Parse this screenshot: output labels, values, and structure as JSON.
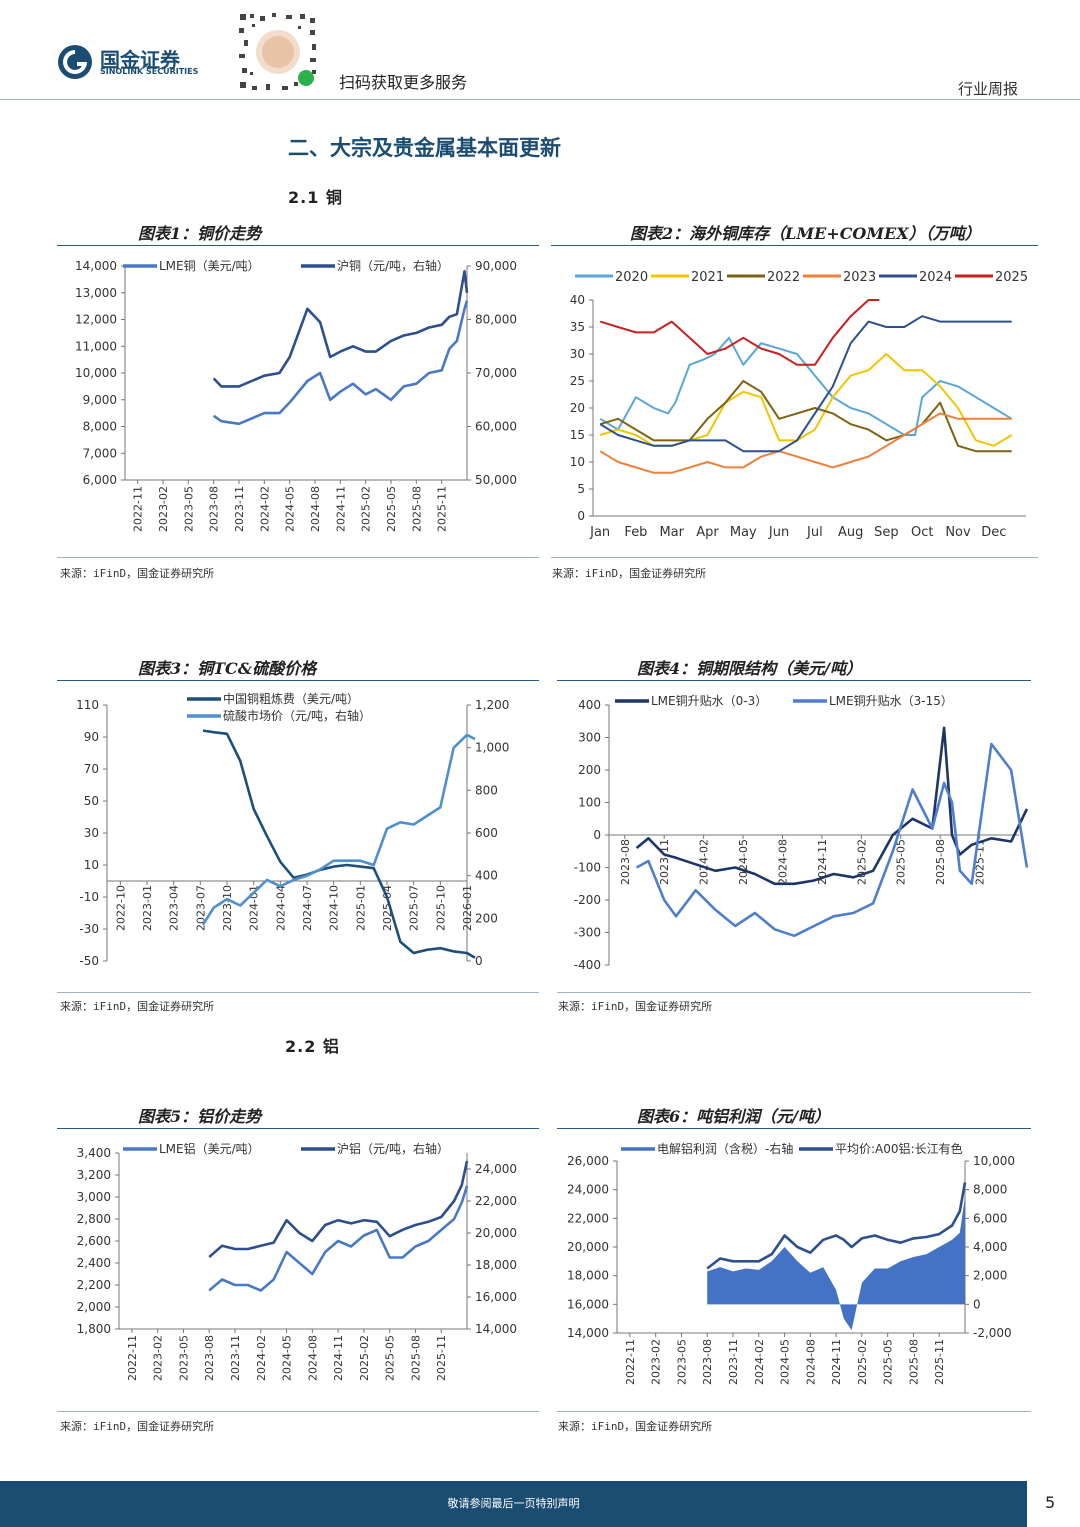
{
  "header": {
    "logo_cn": "国金证券",
    "logo_en": "SINOLINK SECURITIES",
    "qr_caption": "扫码获取更多服务",
    "report_type": "行业周报"
  },
  "section_title": "二、大宗及贵金属基本面更新",
  "subsections": {
    "copper": "2.1 铜",
    "aluminum": "2.2 铝"
  },
  "source_text": "来源：iFinD，国金证券研究所",
  "footer": {
    "disclaimer": "敬请参阅最后一页特别声明",
    "page": "5"
  },
  "chart_data": [
    {
      "id": "fig1",
      "type": "line",
      "title": "图表1：铜价走势",
      "x_ticks": [
        "2022-11",
        "2023-02",
        "2023-05",
        "2023-08",
        "2023-11",
        "2024-02",
        "2024-05",
        "2024-08",
        "2024-11",
        "2025-02",
        "2025-05",
        "2025-08",
        "2025-11"
      ],
      "ylim_left": [
        6000,
        14000
      ],
      "yticks_left": [
        "6,000",
        "7,000",
        "8,000",
        "9,000",
        "10,000",
        "11,000",
        "12,000",
        "13,000",
        "14,000"
      ],
      "ylim_right": [
        50000,
        90000
      ],
      "yticks_right": [
        "50,000",
        "60,000",
        "70,000",
        "80,000",
        "90,000"
      ],
      "series": [
        {
          "name": "LME铜（美元/吨）",
          "axis": "left",
          "color": "#4b78c6",
          "x": [
            3.0,
            3.3,
            4.0,
            5.0,
            5.6,
            6.0,
            6.7,
            7.2,
            7.6,
            8.0,
            8.5,
            9.0,
            9.4,
            10.0,
            10.5,
            11.0,
            11.5,
            12.0,
            12.3,
            12.6,
            12.9,
            13.0
          ],
          "y": [
            8400,
            8200,
            8100,
            8500,
            8500,
            8900,
            9700,
            10000,
            9000,
            9300,
            9600,
            9200,
            9400,
            9000,
            9500,
            9600,
            10000,
            10100,
            10900,
            11200,
            12400,
            12700
          ]
        },
        {
          "name": "沪铜（元/吨，右轴）",
          "axis": "right",
          "color": "#2e4f8f",
          "x": [
            3.0,
            3.3,
            4.0,
            5.0,
            5.6,
            6.0,
            6.7,
            7.2,
            7.6,
            8.0,
            8.5,
            9.0,
            9.4,
            10.0,
            10.5,
            11.0,
            11.5,
            12.0,
            12.3,
            12.6,
            12.9,
            13.0
          ],
          "y": [
            69000,
            67500,
            67500,
            69500,
            70000,
            73000,
            82000,
            79500,
            73000,
            74000,
            75000,
            74000,
            74000,
            76000,
            77000,
            77500,
            78500,
            79000,
            80500,
            81000,
            89000,
            85000
          ]
        }
      ]
    },
    {
      "id": "fig2",
      "type": "line",
      "title": "图表2：海外铜库存（LME+COMEX）（万吨）",
      "categories": [
        "Jan",
        "Feb",
        "Mar",
        "Apr",
        "May",
        "Jun",
        "Jul",
        "Aug",
        "Sep",
        "Oct",
        "Nov",
        "Dec"
      ],
      "ylim": [
        0,
        40
      ],
      "yticks": [
        "0",
        "5",
        "10",
        "15",
        "20",
        "25",
        "30",
        "35",
        "40"
      ],
      "series": [
        {
          "name": "2020",
          "color": "#5aa6d9",
          "x": [
            0,
            0.5,
            1,
            1.5,
            1.9,
            2.1,
            2.5,
            2.9,
            3.2,
            3.6,
            4.0,
            4.5,
            5.0,
            5.5,
            6.0,
            6.5,
            7.0,
            7.5,
            8.0,
            8.5,
            8.8,
            9.0,
            9.5,
            10.0,
            10.5,
            11.0,
            11.5
          ],
          "y": [
            18,
            16,
            22,
            20,
            19,
            21,
            28,
            29,
            30,
            33,
            28,
            32,
            31,
            30,
            26,
            22,
            20,
            19,
            17,
            15,
            15,
            22,
            25,
            24,
            22,
            20,
            18
          ]
        },
        {
          "name": "2021",
          "color": "#f2c500",
          "x": [
            0,
            0.5,
            1,
            1.5,
            2,
            2.5,
            3,
            3.5,
            4,
            4.5,
            5,
            5.5,
            6,
            6.5,
            7,
            7.5,
            8,
            8.5,
            9,
            9.5,
            10,
            10.5,
            11,
            11.5
          ],
          "y": [
            15,
            16,
            15,
            13,
            13,
            14,
            15,
            21,
            23,
            22,
            14,
            14,
            16,
            22,
            26,
            27,
            30,
            27,
            27,
            24,
            20,
            14,
            13,
            15
          ]
        },
        {
          "name": "2022",
          "color": "#7d6212",
          "x": [
            0,
            0.5,
            1,
            1.5,
            2,
            2.5,
            3,
            3.5,
            4,
            4.5,
            5,
            5.5,
            6,
            6.5,
            7,
            7.5,
            8,
            8.5,
            9,
            9.5,
            10,
            10.5,
            11,
            11.5
          ],
          "y": [
            17,
            18,
            16,
            14,
            14,
            14,
            18,
            21,
            25,
            23,
            18,
            19,
            20,
            19,
            17,
            16,
            14,
            15,
            17,
            21,
            13,
            12,
            12,
            12
          ]
        },
        {
          "name": "2023",
          "color": "#ef7f3a",
          "x": [
            0,
            0.5,
            1,
            1.5,
            2,
            2.5,
            3,
            3.5,
            4,
            4.5,
            5,
            5.5,
            6,
            6.5,
            7,
            7.5,
            8,
            8.5,
            9,
            9.5,
            10,
            10.5,
            11,
            11.5
          ],
          "y": [
            12,
            10,
            9,
            8,
            8,
            9,
            10,
            9,
            9,
            11,
            12,
            11,
            10,
            9,
            10,
            11,
            13,
            15,
            17,
            19,
            18,
            18,
            18,
            18
          ]
        },
        {
          "name": "2024",
          "color": "#2e4f8f",
          "x": [
            0,
            0.5,
            1,
            1.5,
            2,
            2.5,
            3,
            3.5,
            4,
            4.5,
            5,
            5.5,
            6,
            6.5,
            7,
            7.5,
            8,
            8.5,
            9,
            9.5,
            10,
            10.5,
            11,
            11.5
          ],
          "y": [
            17,
            15,
            14,
            13,
            13,
            14,
            14,
            14,
            12,
            12,
            12,
            14,
            19,
            24,
            32,
            36,
            35,
            35,
            37,
            36,
            36,
            36,
            36,
            36
          ]
        },
        {
          "name": "2025",
          "color": "#c81f1f",
          "x": [
            0,
            0.5,
            1,
            1.5,
            2,
            2.5,
            3,
            3.5,
            4,
            4.5,
            5,
            5.5,
            6,
            6.5,
            7,
            7.5,
            7.8
          ],
          "y": [
            36,
            35,
            34,
            34,
            36,
            33,
            30,
            31,
            33,
            31,
            30,
            28,
            28,
            33,
            37,
            40,
            40
          ]
        }
      ]
    },
    {
      "id": "fig3",
      "type": "line",
      "title": "图表3：铜TC&硫酸价格",
      "x_ticks": [
        "2022-10",
        "2023-01",
        "2023-04",
        "2023-07",
        "2023-10",
        "2024-01",
        "2024-04",
        "2024-07",
        "2024-10",
        "2025-01",
        "2025-04",
        "2025-07",
        "2025-10",
        "2026-01"
      ],
      "ylim_left": [
        -50,
        110
      ],
      "yticks_left": [
        "-50",
        "-30",
        "-10",
        "10",
        "30",
        "50",
        "70",
        "90",
        "110"
      ],
      "ylim_right": [
        0,
        1200
      ],
      "yticks_right": [
        "0",
        "200",
        "400",
        "600",
        "800",
        "1,000",
        "1,200"
      ],
      "series": [
        {
          "name": "中国铜粗炼费（美元/吨）",
          "axis": "left",
          "color": "#1f4e79",
          "x": [
            3.1,
            3.5,
            4.0,
            4.5,
            5.0,
            5.5,
            6.0,
            6.5,
            7.0,
            7.5,
            8.0,
            8.5,
            9.0,
            9.5,
            10.0,
            10.5,
            11.0,
            11.5,
            12.0,
            12.5,
            13.0,
            13.3
          ],
          "y": [
            94,
            93,
            92,
            75,
            45,
            28,
            12,
            2,
            4,
            7,
            9,
            10,
            9,
            8,
            -10,
            -38,
            -45,
            -43,
            -42,
            -44,
            -45,
            -48
          ]
        },
        {
          "name": "硫酸市场价（元/吨，右轴）",
          "axis": "right",
          "color": "#4f8fcf",
          "x": [
            3.1,
            3.5,
            4.0,
            4.5,
            5.0,
            5.5,
            6.0,
            6.5,
            7.0,
            7.5,
            8.0,
            8.5,
            9.0,
            9.5,
            10.0,
            10.5,
            11.0,
            11.5,
            12.0,
            12.5,
            13.0,
            13.3
          ],
          "y": [
            170,
            250,
            290,
            260,
            320,
            380,
            350,
            380,
            400,
            430,
            470,
            470,
            470,
            450,
            620,
            650,
            640,
            680,
            720,
            1000,
            1060,
            1040
          ]
        }
      ]
    },
    {
      "id": "fig4",
      "type": "line",
      "title": "图表4：铜期限结构（美元/吨）",
      "x_ticks": [
        "2023-08",
        "2023-11",
        "2024-02",
        "2024-05",
        "2024-08",
        "2024-11",
        "2025-02",
        "2025-05",
        "2025-08",
        "2025-11"
      ],
      "ylim": [
        -400,
        400
      ],
      "yticks": [
        "-400",
        "-300",
        "-200",
        "-100",
        "0",
        "100",
        "200",
        "300",
        "400"
      ],
      "series": [
        {
          "name": "LME铜升贴水（0-3）",
          "color": "#1f3566",
          "x": [
            0,
            0.3,
            0.7,
            1.0,
            1.5,
            2.0,
            2.5,
            3.0,
            3.5,
            4.0,
            4.5,
            5.0,
            5.5,
            6.0,
            6.5,
            7.0,
            7.5,
            7.8,
            8.0,
            8.2,
            8.5,
            9.0,
            9.5,
            9.9
          ],
          "y": [
            -40,
            -10,
            -60,
            -70,
            -90,
            -110,
            -100,
            -120,
            -150,
            -150,
            -140,
            -120,
            -130,
            -110,
            0,
            50,
            20,
            330,
            0,
            -60,
            -30,
            -10,
            -20,
            80
          ]
        },
        {
          "name": "LME铜升贴水（3-15）",
          "color": "#4f7ed0",
          "x": [
            0,
            0.3,
            0.7,
            1.0,
            1.5,
            2.0,
            2.5,
            3.0,
            3.5,
            4.0,
            4.5,
            5.0,
            5.5,
            6.0,
            6.5,
            7.0,
            7.5,
            7.8,
            8.0,
            8.2,
            8.5,
            9.0,
            9.5,
            9.9
          ],
          "y": [
            -100,
            -80,
            -200,
            -250,
            -170,
            -230,
            -280,
            -240,
            -290,
            -310,
            -280,
            -250,
            -240,
            -210,
            -50,
            140,
            20,
            160,
            100,
            -110,
            -150,
            280,
            200,
            -100
          ]
        }
      ]
    },
    {
      "id": "fig5",
      "type": "line",
      "title": "图表5：铝价走势",
      "x_ticks": [
        "2022-11",
        "2023-02",
        "2023-05",
        "2023-08",
        "2023-11",
        "2024-02",
        "2024-05",
        "2024-08",
        "2024-11",
        "2025-02",
        "2025-05",
        "2025-08",
        "2025-11"
      ],
      "ylim_left": [
        1800,
        3400
      ],
      "yticks_left": [
        "1,800",
        "2,000",
        "2,200",
        "2,400",
        "2,600",
        "2,800",
        "3,000",
        "3,200",
        "3,400"
      ],
      "ylim_right": [
        14000,
        25000
      ],
      "yticks_right": [
        "14,000",
        "16,000",
        "18,000",
        "20,000",
        "22,000",
        "24,000"
      ],
      "series": [
        {
          "name": "LME铝（美元/吨）",
          "axis": "left",
          "color": "#4b78c6",
          "x": [
            3.0,
            3.5,
            4.0,
            4.5,
            5.0,
            5.5,
            6.0,
            6.5,
            7.0,
            7.5,
            8.0,
            8.5,
            9.0,
            9.5,
            10.0,
            10.5,
            11.0,
            11.5,
            12.0,
            12.5,
            12.8,
            13.0
          ],
          "y": [
            2150,
            2250,
            2200,
            2200,
            2150,
            2250,
            2500,
            2400,
            2300,
            2500,
            2600,
            2550,
            2650,
            2700,
            2450,
            2450,
            2550,
            2600,
            2700,
            2800,
            2950,
            3100
          ]
        },
        {
          "name": "沪铝（元/吨，右轴）",
          "axis": "right",
          "color": "#2e4f8f",
          "x": [
            3.0,
            3.5,
            4.0,
            4.5,
            5.0,
            5.5,
            6.0,
            6.5,
            7.0,
            7.5,
            8.0,
            8.5,
            9.0,
            9.5,
            10.0,
            10.5,
            11.0,
            11.5,
            12.0,
            12.5,
            12.8,
            13.0
          ],
          "y": [
            18500,
            19200,
            19000,
            19000,
            19200,
            19400,
            20800,
            20000,
            19500,
            20500,
            20800,
            20600,
            20800,
            20700,
            19800,
            20200,
            20500,
            20700,
            21000,
            22000,
            23000,
            24500
          ]
        }
      ]
    },
    {
      "id": "fig6",
      "type": "area",
      "title": "图表6：吨铝利润（元/吨）",
      "x_ticks": [
        "2022-11",
        "2023-02",
        "2023-05",
        "2023-08",
        "2023-11",
        "2024-02",
        "2024-05",
        "2024-08",
        "2024-11",
        "2025-02",
        "2025-05",
        "2025-08",
        "2025-11"
      ],
      "ylim_left": [
        14000,
        26000
      ],
      "yticks_left": [
        "14,000",
        "16,000",
        "18,000",
        "20,000",
        "22,000",
        "24,000",
        "26,000"
      ],
      "ylim_right": [
        -2000,
        10000
      ],
      "yticks_right": [
        "-2,000",
        "0",
        "2,000",
        "4,000",
        "6,000",
        "8,000",
        "10,000"
      ],
      "series": [
        {
          "name": "电解铝利润（含税）-右轴",
          "axis": "right",
          "color": "#4472c4",
          "x": [
            3.0,
            3.5,
            4.0,
            4.5,
            5.0,
            5.5,
            6.0,
            6.5,
            7.0,
            7.5,
            8.0,
            8.3,
            8.6,
            9.0,
            9.5,
            10.0,
            10.5,
            11.0,
            11.5,
            12.0,
            12.5,
            12.8,
            13.0
          ],
          "y": [
            2300,
            2600,
            2300,
            2500,
            2400,
            3000,
            4000,
            3000,
            2200,
            2600,
            1000,
            -1000,
            -1800,
            1500,
            2500,
            2500,
            3000,
            3300,
            3500,
            4000,
            4500,
            5000,
            7500
          ]
        },
        {
          "name": "平均价:A00铝:长江有色",
          "axis": "left",
          "color": "#2e4f8f",
          "x": [
            3.0,
            3.5,
            4.0,
            4.5,
            5.0,
            5.5,
            6.0,
            6.5,
            7.0,
            7.5,
            8.0,
            8.3,
            8.6,
            9.0,
            9.5,
            10.0,
            10.5,
            11.0,
            11.5,
            12.0,
            12.5,
            12.8,
            13.0
          ],
          "y": [
            18500,
            19200,
            19000,
            19000,
            19000,
            19500,
            20800,
            20000,
            19600,
            20500,
            20800,
            20500,
            20000,
            20600,
            20800,
            20500,
            20300,
            20600,
            20700,
            20900,
            21500,
            22500,
            24500
          ]
        }
      ]
    }
  ]
}
